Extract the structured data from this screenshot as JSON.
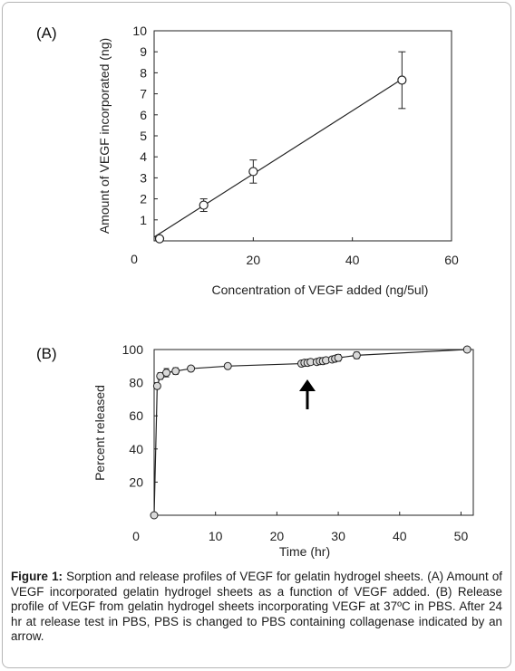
{
  "chart_data": [
    {
      "type": "scatter",
      "panel_label": "(A)",
      "xlabel": "Concentration of VEGF added (ng/5ul)",
      "ylabel": "Amount of VEGF incorporated (ng)",
      "xlim": [
        0,
        60
      ],
      "ylim": [
        0,
        10
      ],
      "xticks": [
        "0",
        "20",
        "40",
        "60"
      ],
      "yticks": [
        "1",
        "2",
        "3",
        "4",
        "5",
        "6",
        "7",
        "8",
        "9",
        "10"
      ],
      "grid": false,
      "legend": "none",
      "trendline": "linear",
      "series": [
        {
          "x": [
            0,
            10,
            20,
            50
          ],
          "y": [
            0.1,
            1.7,
            3.3,
            7.65
          ],
          "error": [
            0,
            0.3,
            0.55,
            1.35
          ]
        }
      ]
    },
    {
      "type": "line",
      "panel_label": "(B)",
      "xlabel": "Time (hr)",
      "ylabel": "Percent released",
      "xlim": [
        0,
        52
      ],
      "ylim": [
        0,
        100
      ],
      "xticks": [
        "0",
        "10",
        "20",
        "30",
        "40",
        "50"
      ],
      "yticks": [
        "20",
        "40",
        "60",
        "80",
        "100"
      ],
      "grid": false,
      "legend": "none",
      "annotation": "arrow at 24 hr",
      "series": [
        {
          "x": [
            0,
            0.5,
            1,
            2,
            3.5,
            6,
            12,
            24,
            24.5,
            25,
            25.5,
            26.5,
            27,
            27.5,
            28,
            29,
            29.5,
            30,
            33,
            51
          ],
          "y": [
            0,
            78,
            84,
            86,
            87,
            88.5,
            90,
            91.5,
            92,
            92,
            92.5,
            92.5,
            93,
            93,
            93.5,
            94,
            94.5,
            95,
            96.5,
            100
          ],
          "error": [
            0,
            1.5,
            2,
            2.5,
            2,
            1,
            1,
            1,
            1,
            1,
            1,
            1,
            1,
            1,
            1,
            1.5,
            1.5,
            2,
            2,
            0
          ]
        }
      ]
    }
  ],
  "caption": {
    "bold": "Figure 1:",
    "text": " Sorption and release profiles of VEGF for gelatin hydrogel sheets. (A) Amount of VEGF incorporated gelatin hydrogel sheets as a function of VEGF added. (B) Release profile of VEGF from gelatin hydrogel sheets incorporating VEGF at 37ºC in PBS. After 24 hr at release test in PBS, PBS is changed to PBS containing collagenase indicated by an arrow."
  }
}
